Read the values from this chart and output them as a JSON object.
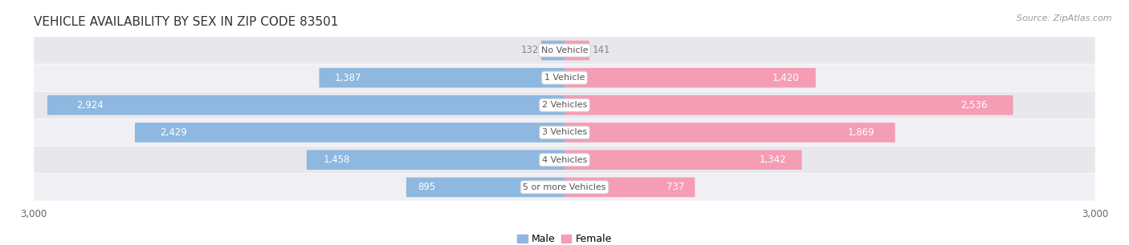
{
  "title": "VEHICLE AVAILABILITY BY SEX IN ZIP CODE 83501",
  "source": "Source: ZipAtlas.com",
  "categories": [
    "No Vehicle",
    "1 Vehicle",
    "2 Vehicles",
    "3 Vehicles",
    "4 Vehicles",
    "5 or more Vehicles"
  ],
  "male_values": [
    132,
    1387,
    2924,
    2429,
    1458,
    895
  ],
  "female_values": [
    141,
    1420,
    2536,
    1869,
    1342,
    737
  ],
  "male_color": "#8eb8df",
  "female_color": "#f59db5",
  "row_bg_color": "#e8e8ec",
  "row_bg_color2": "#f0f0f4",
  "x_max": 3000,
  "label_color_inside": "#ffffff",
  "label_color_outside": "#888888",
  "legend_male": "Male",
  "legend_female": "Female",
  "title_fontsize": 11,
  "label_fontsize": 8.5,
  "tick_fontsize": 8.5,
  "source_fontsize": 8,
  "cat_fontsize": 8
}
